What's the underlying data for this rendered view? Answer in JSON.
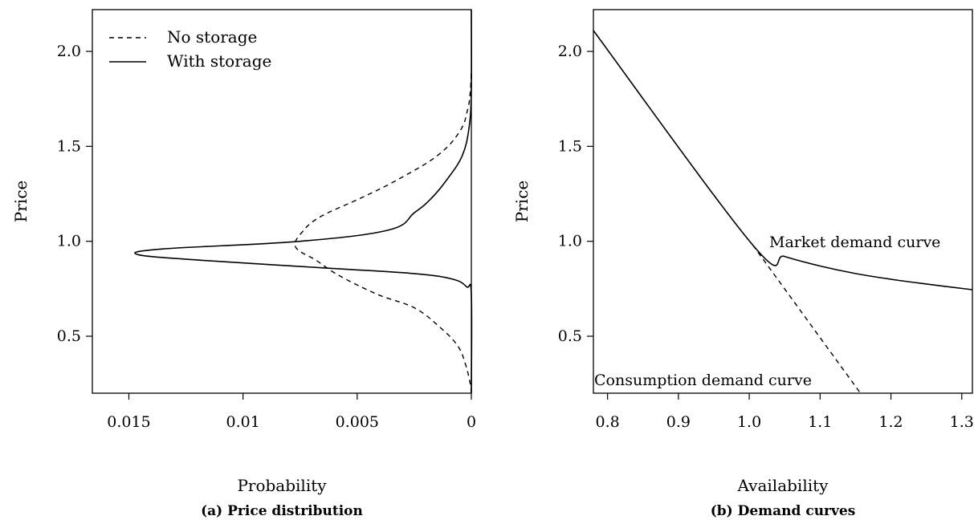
{
  "chart_data": [
    {
      "type": "line",
      "caption": "(a) Price distribution",
      "xlabel": "Probability",
      "ylabel": "Price",
      "x_reversed": true,
      "xlim": [
        0.0166,
        0
      ],
      "ylim": [
        0.2,
        2.22
      ],
      "xticks": [
        0.015,
        0.01,
        0.005,
        0
      ],
      "xtick_labels": [
        "0.015",
        "0.01",
        "0.005",
        "0"
      ],
      "yticks": [
        0.5,
        1.0,
        1.5,
        2.0
      ],
      "ytick_labels": [
        "0.5",
        "1.0",
        "1.5",
        "2.0"
      ],
      "legend": {
        "position": "top-left",
        "entries": [
          {
            "label": "No storage",
            "style": "dashed"
          },
          {
            "label": "With storage",
            "style": "solid"
          }
        ]
      },
      "series": [
        {
          "name": "No storage",
          "style": "dashed",
          "points": [
            [
              0.0,
              0.2
            ],
            [
              5e-05,
              0.25
            ],
            [
              0.00025,
              0.35
            ],
            [
              0.0006,
              0.45
            ],
            [
              0.0014,
              0.55
            ],
            [
              0.0025,
              0.65
            ],
            [
              0.0041,
              0.72
            ],
            [
              0.0058,
              0.82
            ],
            [
              0.0068,
              0.9
            ],
            [
              0.0077,
              0.97
            ],
            [
              0.0074,
              1.05
            ],
            [
              0.0066,
              1.13
            ],
            [
              0.0048,
              1.23
            ],
            [
              0.0033,
              1.32
            ],
            [
              0.0015,
              1.45
            ],
            [
              0.0005,
              1.58
            ],
            [
              0.00015,
              1.7
            ],
            [
              4e-05,
              1.8
            ],
            [
              0.0,
              1.9
            ]
          ]
        },
        {
          "name": "With storage",
          "style": "solid",
          "points": [
            [
              0.0,
              0.2
            ],
            [
              0.0,
              0.72
            ],
            [
              0.0002,
              0.76
            ],
            [
              0.0008,
              0.8
            ],
            [
              0.0025,
              0.83
            ],
            [
              0.0065,
              0.86
            ],
            [
              0.0118,
              0.9
            ],
            [
              0.0146,
              0.93
            ],
            [
              0.0135,
              0.96
            ],
            [
              0.0075,
              1.0
            ],
            [
              0.0036,
              1.06
            ],
            [
              0.0025,
              1.15
            ],
            [
              0.0018,
              1.22
            ],
            [
              0.0011,
              1.32
            ],
            [
              0.0004,
              1.45
            ],
            [
              0.0001,
              1.6
            ],
            [
              0.0,
              1.8
            ],
            [
              0.0,
              2.22
            ]
          ]
        }
      ]
    },
    {
      "type": "line",
      "caption": "(b) Demand curves",
      "xlabel": "Availability",
      "ylabel": "Price",
      "xlim": [
        0.78,
        1.315
      ],
      "ylim": [
        0.2,
        2.22
      ],
      "xticks": [
        0.8,
        0.9,
        1.0,
        1.1,
        1.2,
        1.3
      ],
      "xtick_labels": [
        "0.8",
        "0.9",
        "1.0",
        "1.1",
        "1.2",
        "1.3"
      ],
      "yticks": [
        0.5,
        1.0,
        1.5,
        2.0
      ],
      "ytick_labels": [
        "0.5",
        "1.0",
        "1.5",
        "2.0"
      ],
      "annotations": [
        {
          "text": "Market demand curve",
          "x": 1.03,
          "y": 0.98
        },
        {
          "text": "Consumption demand curve",
          "x": 0.78,
          "y": 0.25
        }
      ],
      "series": [
        {
          "name": "Market demand curve",
          "style": "solid",
          "points": [
            [
              0.78,
              2.11
            ],
            [
              1.005,
              0.98
            ],
            [
              1.05,
              0.92
            ],
            [
              1.1,
              0.87
            ],
            [
              1.15,
              0.83
            ],
            [
              1.2,
              0.8
            ],
            [
              1.25,
              0.775
            ],
            [
              1.315,
              0.745
            ]
          ]
        },
        {
          "name": "Consumption demand curve",
          "style": "dashed",
          "points": [
            [
              1.005,
              0.98
            ],
            [
              1.157,
              0.2
            ]
          ]
        }
      ]
    }
  ]
}
